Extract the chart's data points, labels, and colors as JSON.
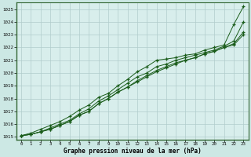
{
  "title": "Graphe pression niveau de la mer (hPa)",
  "background_color": "#cce8e4",
  "plot_bg_color": "#d8eeec",
  "grid_color": "#b0cccc",
  "line_color": "#1a5c1a",
  "border_color": "#336633",
  "xlim": [
    -0.5,
    23.5
  ],
  "ylim": [
    1014.8,
    1025.5
  ],
  "yticks": [
    1015,
    1016,
    1017,
    1018,
    1019,
    1020,
    1021,
    1022,
    1023,
    1024,
    1025
  ],
  "xticks": [
    0,
    1,
    2,
    3,
    4,
    5,
    6,
    7,
    8,
    9,
    10,
    11,
    12,
    13,
    14,
    15,
    16,
    17,
    18,
    19,
    20,
    21,
    22,
    23
  ],
  "series": [
    [
      1015.1,
      1015.3,
      1015.6,
      1015.9,
      1016.2,
      1016.6,
      1017.1,
      1017.5,
      1018.1,
      1018.4,
      1019.0,
      1019.5,
      1020.1,
      1020.5,
      1021.0,
      1021.1,
      1021.2,
      1021.4,
      1021.5,
      1021.8,
      1022.0,
      1022.2,
      1023.8,
      1025.2
    ],
    [
      1015.1,
      1015.2,
      1015.4,
      1015.7,
      1016.0,
      1016.3,
      1016.8,
      1017.2,
      1017.8,
      1018.2,
      1018.7,
      1019.2,
      1019.7,
      1020.0,
      1020.5,
      1020.7,
      1021.0,
      1021.2,
      1021.4,
      1021.6,
      1021.8,
      1022.1,
      1022.5,
      1024.0
    ],
    [
      1015.1,
      1015.2,
      1015.4,
      1015.6,
      1015.9,
      1016.2,
      1016.7,
      1017.0,
      1017.6,
      1018.0,
      1018.5,
      1018.9,
      1019.4,
      1019.8,
      1020.2,
      1020.5,
      1020.8,
      1021.0,
      1021.2,
      1021.5,
      1021.7,
      1022.0,
      1022.3,
      1023.2
    ],
    [
      1015.1,
      1015.2,
      1015.4,
      1015.6,
      1015.9,
      1016.2,
      1016.7,
      1017.0,
      1017.6,
      1018.0,
      1018.5,
      1018.9,
      1019.3,
      1019.7,
      1020.1,
      1020.4,
      1020.7,
      1021.0,
      1021.2,
      1021.5,
      1021.7,
      1022.0,
      1022.2,
      1023.0
    ]
  ]
}
